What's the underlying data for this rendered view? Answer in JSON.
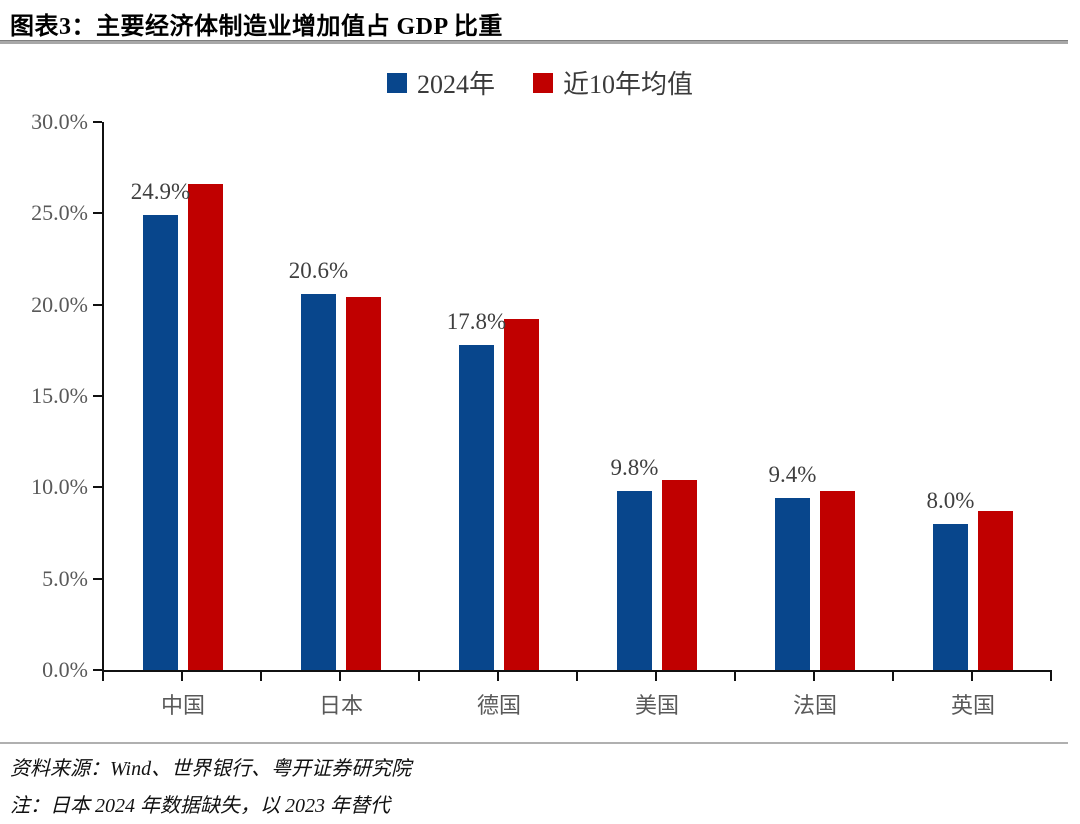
{
  "title": "图表3：主要经济体制造业增加值占 GDP 比重",
  "legend": [
    {
      "label": "2024年",
      "color": "#08468C"
    },
    {
      "label": "近10年均值",
      "color": "#C00000"
    }
  ],
  "chart_data": {
    "type": "bar",
    "title": "主要经济体制造业增加值占 GDP 比重",
    "categories": [
      "中国",
      "日本",
      "德国",
      "美国",
      "法国",
      "英国"
    ],
    "series": [
      {
        "name": "2024年",
        "color": "#08468C",
        "values": [
          24.9,
          20.6,
          17.8,
          9.8,
          9.4,
          8.0
        ],
        "data_labels": [
          "24.9%",
          "20.6%",
          "17.8%",
          "9.8%",
          "9.4%",
          "8.0%"
        ]
      },
      {
        "name": "近10年均值",
        "color": "#C00000",
        "values": [
          26.6,
          20.4,
          19.2,
          10.4,
          9.8,
          8.7
        ],
        "data_labels": null
      }
    ],
    "xlabel": "",
    "ylabel": "",
    "ylim": [
      0,
      30
    ],
    "ytick_labels": [
      "0.0%",
      "5.0%",
      "10.0%",
      "15.0%",
      "20.0%",
      "25.0%",
      "30.0%"
    ],
    "grid": false,
    "legend_position": "top"
  },
  "footer": {
    "source": "资料来源：Wind、世界银行、粤开证券研究院",
    "note": "注：日本 2024 年数据缺失，以 2023 年替代"
  }
}
